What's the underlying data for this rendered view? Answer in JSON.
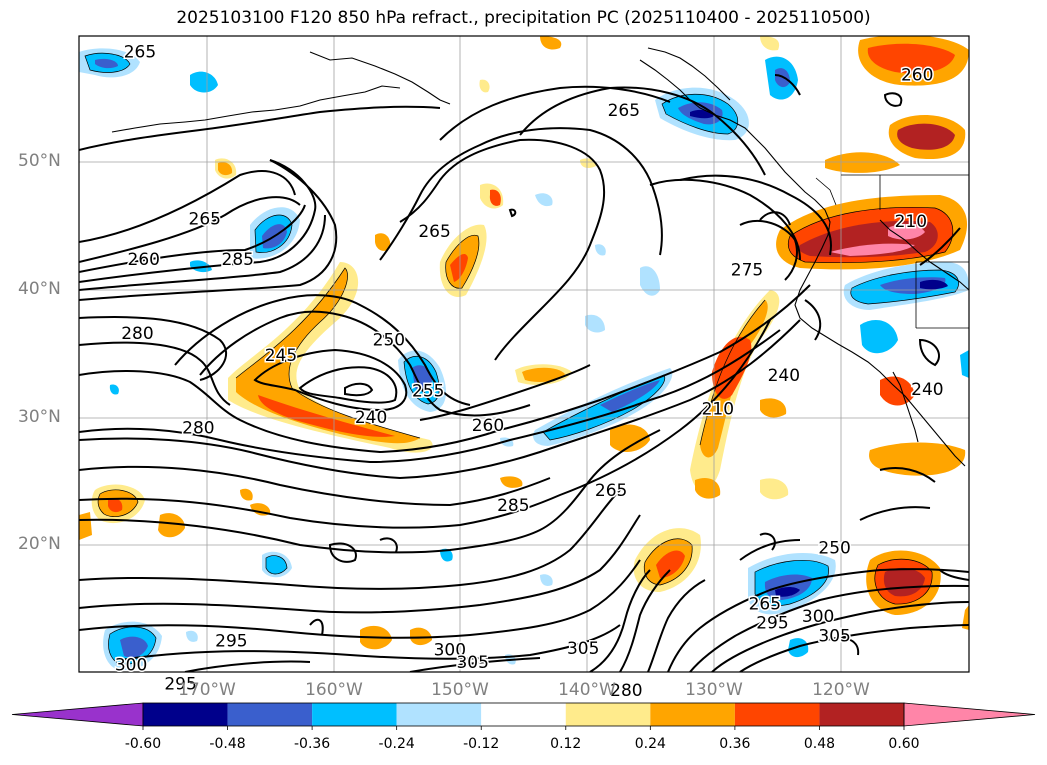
{
  "title": "2025103100 F120 850 hPa refract., precipitation PC (2025110400 - 2025110500)",
  "axes": {
    "lat_labels": [
      "50°N",
      "40°N",
      "30°N",
      "20°N"
    ],
    "lon_labels": [
      "170°W",
      "160°W",
      "150°W",
      "140°W",
      "130°W",
      "120°W"
    ]
  },
  "contour_labels": [
    {
      "text": "265",
      "lon": -175.2,
      "lat": 58.6
    },
    {
      "text": "260",
      "lon": -114.0,
      "lat": 56.8
    },
    {
      "text": "265",
      "lon": -137.1,
      "lat": 54.0
    },
    {
      "text": "265",
      "lon": -170.1,
      "lat": 45.5
    },
    {
      "text": "260",
      "lon": -174.9,
      "lat": 42.3
    },
    {
      "text": "285",
      "lon": -167.5,
      "lat": 42.3
    },
    {
      "text": "265",
      "lon": -152.0,
      "lat": 44.5
    },
    {
      "text": "275",
      "lon": -127.4,
      "lat": 41.5
    },
    {
      "text": "280",
      "lon": -175.4,
      "lat": 36.5
    },
    {
      "text": "250",
      "lon": -155.6,
      "lat": 36.0
    },
    {
      "text": "245",
      "lon": -164.1,
      "lat": 34.8
    },
    {
      "text": "255",
      "lon": -152.5,
      "lat": 32.0
    },
    {
      "text": "240",
      "lon": -157.0,
      "lat": 29.9
    },
    {
      "text": "240",
      "lon": -124.5,
      "lat": 33.2
    },
    {
      "text": "240",
      "lon": -113.2,
      "lat": 32.1
    },
    {
      "text": "280",
      "lon": -170.6,
      "lat": 29.1
    },
    {
      "text": "260",
      "lon": -147.8,
      "lat": 29.3
    },
    {
      "text": "210",
      "lon": -129.7,
      "lat": 30.6
    },
    {
      "text": "210",
      "lon": -114.5,
      "lat": 45.3
    },
    {
      "text": "265",
      "lon": -138.1,
      "lat": 24.2
    },
    {
      "text": "285",
      "lon": -145.8,
      "lat": 23.0
    },
    {
      "text": "250",
      "lon": -120.5,
      "lat": 19.7
    },
    {
      "text": "265",
      "lon": -126.0,
      "lat": 15.3
    },
    {
      "text": "295",
      "lon": -125.4,
      "lat": 13.8
    },
    {
      "text": "300",
      "lon": -121.8,
      "lat": 14.3
    },
    {
      "text": "305",
      "lon": -120.5,
      "lat": 12.8
    },
    {
      "text": "295",
      "lon": -168.0,
      "lat": 12.4
    },
    {
      "text": "305",
      "lon": -140.3,
      "lat": 11.8
    },
    {
      "text": "300",
      "lon": -150.8,
      "lat": 11.7
    },
    {
      "text": "305",
      "lon": -149.0,
      "lat": 10.7
    },
    {
      "text": "300",
      "lon": -175.9,
      "lat": 10.5
    },
    {
      "text": "295",
      "lon": -172.0,
      "lat": 9.0
    },
    {
      "text": "280",
      "lon": -136.9,
      "lat": 8.5
    }
  ],
  "colorbar": {
    "ticks": [
      "-0.60",
      "-0.48",
      "-0.36",
      "-0.24",
      "-0.12",
      "0.12",
      "0.24",
      "0.36",
      "0.48",
      "0.60"
    ],
    "colors": [
      "#9932cc",
      "#00008b",
      "#3a5fcd",
      "#00bfff",
      "#b0e2ff",
      "#ffffff",
      "#ffeb8c",
      "#ffa500",
      "#ff4500",
      "#b22222",
      "#ff85a8"
    ]
  }
}
